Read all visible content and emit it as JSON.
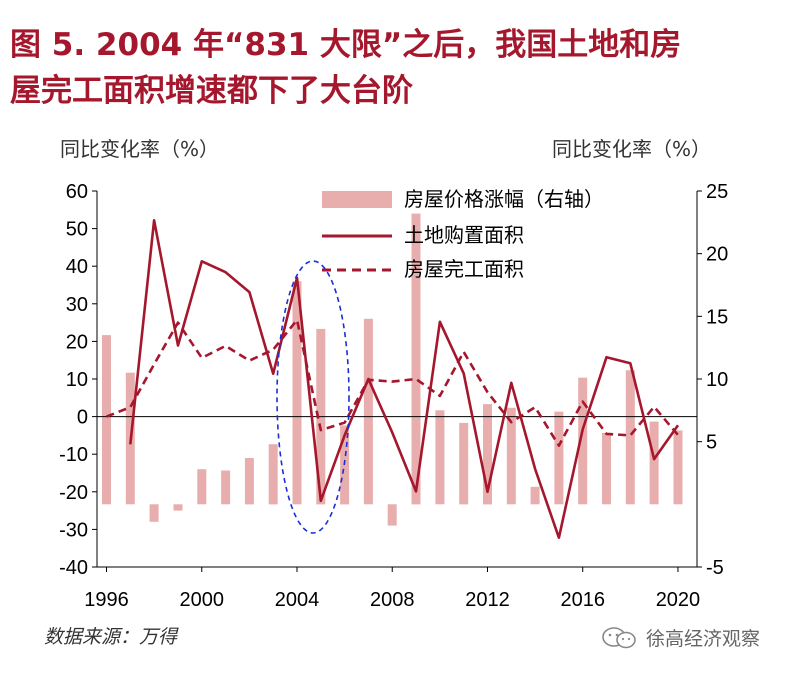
{
  "title": {
    "line1": "图 5. 2004 年“831 大限”之后，我国土地和房",
    "line2": "屋完工面积增速都下了大台阶"
  },
  "left_unit": "同比变化率（%）",
  "right_unit": "同比变化率（%）",
  "source": "数据来源：万得",
  "watermark": "徐高经济观察",
  "colors": {
    "bars": "#e8aeae",
    "line": "#a5172d",
    "highlight": "#1a2fd6",
    "title": "#a5172d"
  },
  "chart_data": {
    "type": "bar+line",
    "title": "图 5. 2004 年“831 大限”之后，我国土地和房屋完工面积增速都下了大台阶",
    "xlabel": "",
    "ylabel": "同比变化率（%）",
    "y2label": "同比变化率（%）",
    "ylim": [
      -40,
      60
    ],
    "y2lim": [
      -5,
      25
    ],
    "yticks": [
      60,
      50,
      40,
      30,
      20,
      10,
      0,
      -10,
      -20,
      -30,
      -40
    ],
    "y2ticks": [
      25,
      20,
      15,
      10,
      5,
      -5
    ],
    "x": [
      1996,
      1997,
      1998,
      1999,
      2000,
      2001,
      2002,
      2003,
      2004,
      2005,
      2006,
      2007,
      2008,
      2009,
      2010,
      2011,
      2012,
      2013,
      2014,
      2015,
      2016,
      2017,
      2018,
      2019,
      2020
    ],
    "xticks": [
      "1996",
      "2000",
      "2004",
      "2008",
      "2012",
      "2016",
      "2020"
    ],
    "legend": [
      "房屋价格涨幅（右轴）",
      "土地购置面积",
      "房屋完工面积"
    ],
    "series": [
      {
        "name": "房屋价格涨幅（右轴）",
        "type": "bar",
        "axis": "right",
        "values": [
          13.5,
          10.5,
          -1.4,
          -0.5,
          2.8,
          2.7,
          3.7,
          4.8,
          17.8,
          14.0,
          6.3,
          14.8,
          -1.7,
          23.2,
          7.5,
          6.5,
          8.0,
          7.7,
          1.4,
          7.4,
          10.1,
          5.7,
          10.7,
          6.6,
          5.9
        ]
      },
      {
        "name": "土地购置面积",
        "type": "line",
        "style": "solid",
        "axis": "left",
        "values": [
          null,
          -7.4,
          52.2,
          18.9,
          41.3,
          38.4,
          33.1,
          11.4,
          36.9,
          -22.4,
          -5.0,
          10.0,
          -4.2,
          -19.9,
          25.2,
          11.5,
          -20.0,
          9.0,
          -13.9,
          -32.2,
          -3.4,
          15.8,
          14.2,
          -11.3,
          -2.3
        ]
      },
      {
        "name": "房屋完工面积",
        "type": "line",
        "style": "dashed",
        "axis": "left",
        "values": [
          0.0,
          2.5,
          13.9,
          25.0,
          15.6,
          18.8,
          14.9,
          17.8,
          25.7,
          -3.6,
          -1.6,
          9.8,
          9.3,
          10.0,
          5.5,
          17.2,
          6.5,
          -1.5,
          2.5,
          -7.7,
          4.0,
          -4.6,
          -5.0,
          2.6,
          -4.9
        ]
      }
    ],
    "annotation": {
      "type": "ellipse",
      "around": "2004",
      "style": "dashed",
      "color": "blue"
    }
  }
}
